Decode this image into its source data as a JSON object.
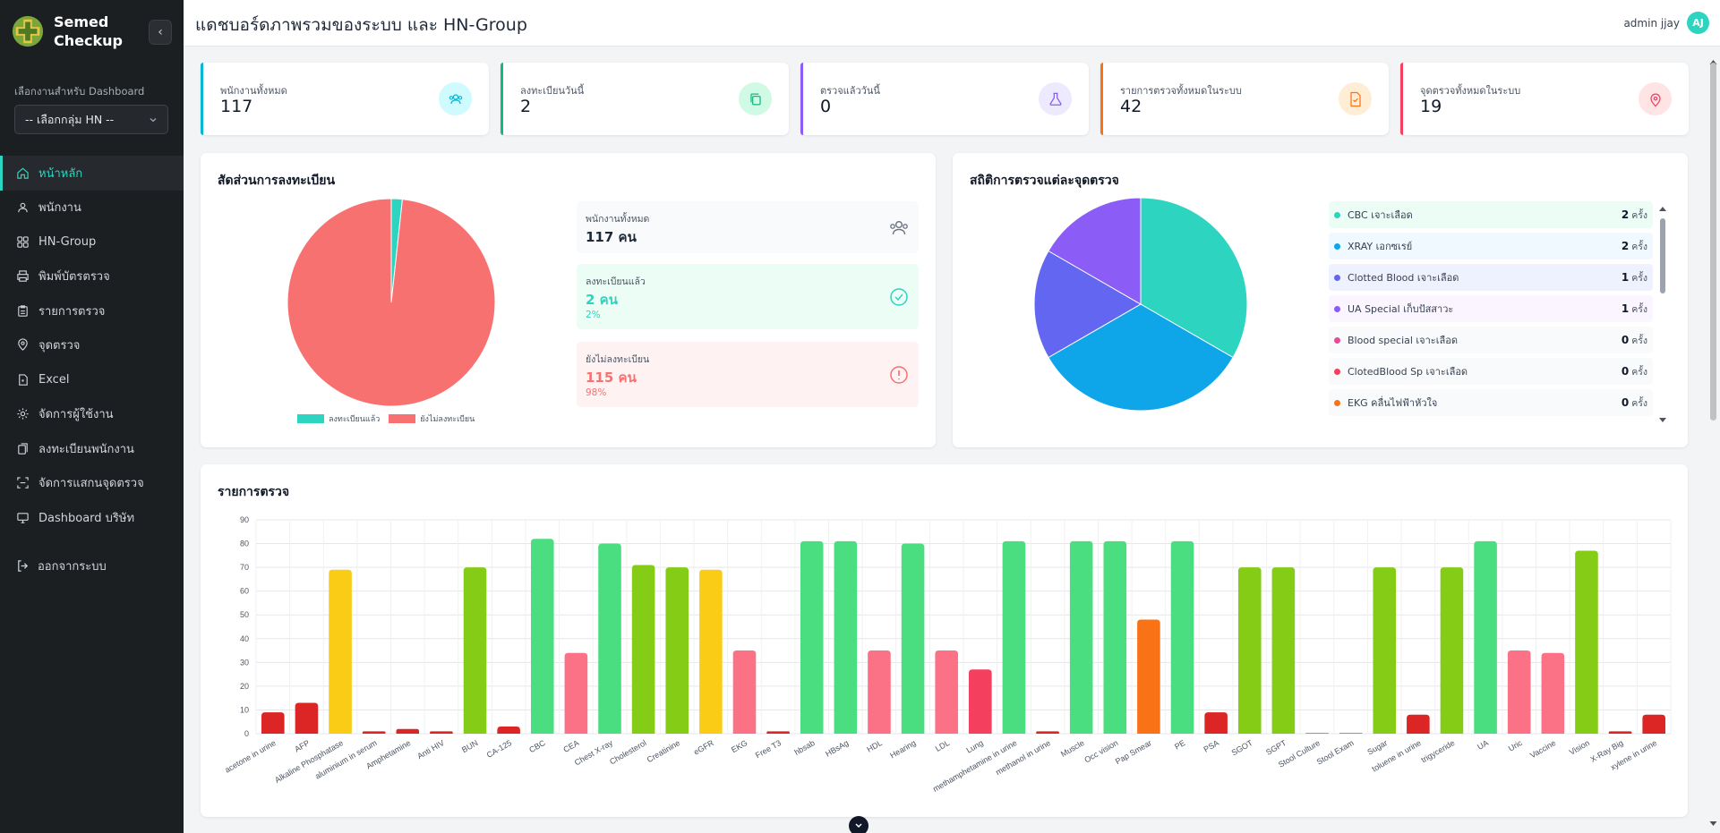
{
  "brand": {
    "line1": "Semed",
    "line2": "Checkup"
  },
  "sidebar": {
    "select_label": "เลือกงานสำหรับ Dashboard",
    "select_value": "-- เลือกกลุ่ม HN --",
    "items": [
      {
        "label": "หน้าหลัก",
        "icon": "home-icon"
      },
      {
        "label": "พนักงาน",
        "icon": "users-icon"
      },
      {
        "label": "HN-Group",
        "icon": "grid-icon"
      },
      {
        "label": "พิมพ์บัตรตรวจ",
        "icon": "printer-icon"
      },
      {
        "label": "รายการตรวจ",
        "icon": "clipboard-icon"
      },
      {
        "label": "จุดตรวจ",
        "icon": "map-pin-icon"
      },
      {
        "label": "Excel",
        "icon": "file-icon"
      },
      {
        "label": "จัดการผู้ใช้งาน",
        "icon": "user-cog-icon"
      },
      {
        "label": "ลงทะเบียนพนักงาน",
        "icon": "register-icon"
      },
      {
        "label": "จัดการแสกนจุดตรวจ",
        "icon": "scan-icon"
      },
      {
        "label": "Dashboard บริษัท",
        "icon": "monitor-icon"
      }
    ],
    "logout": "ออกจากระบบ"
  },
  "header": {
    "title": "แดชบอร์ดภาพรวมของระบบ และ HN-Group",
    "user_name": "admin jjay",
    "user_initials": "AJ"
  },
  "stats": [
    {
      "label": "พนักงานทั้งหมด",
      "value": "117",
      "color": "#06b6d4",
      "bg": "#cffafe",
      "icon": "users-icon"
    },
    {
      "label": "ลงทะเบียนวันนี้",
      "value": "2",
      "color": "#10b981",
      "bg": "#d1fae5",
      "icon": "copy-icon"
    },
    {
      "label": "ตรวจแล้ววันนี้",
      "value": "0",
      "color": "#8b5cf6",
      "bg": "#ede9fe",
      "icon": "flask-icon"
    },
    {
      "label": "รายการตรวจทั้งหมดในระบบ",
      "value": "42",
      "color": "#f97316",
      "bg": "#ffedd5",
      "icon": "file-check-icon"
    },
    {
      "label": "จุดตรวจทั้งหมดในระบบ",
      "value": "19",
      "color": "#f43f5e",
      "bg": "#ffe4e6",
      "icon": "map-pin-icon"
    }
  ],
  "registration": {
    "title": "สัดส่วนการลงทะเบียน",
    "total_label": "พนักงานทั้งหมด",
    "total_value": "117 คน",
    "registered_label": "ลงทะเบียนแล้ว",
    "registered_value": "2 คน",
    "registered_pct": "2%",
    "unregistered_label": "ยังไม่ลงทะเบียน",
    "unregistered_value": "115 คน",
    "unregistered_pct": "98%",
    "legend_registered": "ลงทะเบียนแล้ว",
    "legend_unregistered": "ยังไม่ลงทะเบียน",
    "pie": [
      {
        "value": 2,
        "color": "#2dd4bf"
      },
      {
        "value": 115,
        "color": "#f87171"
      }
    ]
  },
  "station_stats": {
    "title": "สถิติการตรวจแต่ละจุดตรวจ",
    "pie": [
      {
        "value": 2,
        "color": "#2dd4bf"
      },
      {
        "value": 2,
        "color": "#0ea5e9"
      },
      {
        "value": 1,
        "color": "#6366f1"
      },
      {
        "value": 1,
        "color": "#8b5cf6"
      }
    ],
    "items": [
      {
        "name": "CBC เจาะเลือด",
        "count": "2",
        "unit": "ครั้ง",
        "color": "#2dd4bf",
        "bg": "#ecfdf5"
      },
      {
        "name": "XRAY เอกซเรย์",
        "count": "2",
        "unit": "ครั้ง",
        "color": "#0ea5e9",
        "bg": "#f0f9ff"
      },
      {
        "name": "Clotted Blood เจาะเลือด",
        "count": "1",
        "unit": "ครั้ง",
        "color": "#6366f1",
        "bg": "#eef2ff"
      },
      {
        "name": "UA Special เก็บปัสสาวะ",
        "count": "1",
        "unit": "ครั้ง",
        "color": "#8b5cf6",
        "bg": "#faf5ff"
      },
      {
        "name": "Blood special เจาะเลือด",
        "count": "0",
        "unit": "ครั้ง",
        "color": "#ec4899",
        "bg": "#f9fafb"
      },
      {
        "name": "ClotedBlood Sp เจาะเลือด",
        "count": "0",
        "unit": "ครั้ง",
        "color": "#f43f5e",
        "bg": "#f9fafb"
      },
      {
        "name": "EKG คลื่นไฟฟ้าหัวใจ",
        "count": "0",
        "unit": "ครั้ง",
        "color": "#f97316",
        "bg": "#f9fafb"
      }
    ]
  },
  "chart_data": {
    "type": "bar",
    "title": "รายการตรวจ",
    "ylim": [
      0,
      90
    ],
    "yticks": [
      0,
      10,
      20,
      30,
      40,
      50,
      60,
      70,
      80,
      90
    ],
    "categories": [
      "acetone in urine",
      "AFP",
      "Alkaline Phosphatase",
      "aluminium in serum",
      "Amphetamine",
      "Anti HIV",
      "BUN",
      "CA-125",
      "CBC",
      "CEA",
      "Chest X-ray",
      "Cholesterol",
      "Creatinine",
      "eGFR",
      "EKG",
      "Free T3",
      "hbsab",
      "HBsAg",
      "HDL",
      "Hearing",
      "LDL",
      "Lung",
      "methamphetamine in urine",
      "methanol in urine",
      "Muscle",
      "Occ vision",
      "Pap Smear",
      "PE",
      "PSA",
      "SGOT",
      "SGPT",
      "Stool Culture",
      "Stool Exam",
      "Sugar",
      "toluene in urine",
      "trigyceride",
      "UA",
      "Uric",
      "Vaccine",
      "Vision",
      "X-Ray Big",
      "xylene in urine"
    ],
    "values": [
      9,
      13,
      69,
      1,
      2,
      1,
      70,
      3,
      82,
      34,
      80,
      71,
      70,
      69,
      35,
      1,
      81,
      81,
      35,
      80,
      35,
      27,
      81,
      1,
      81,
      81,
      48,
      81,
      9,
      70,
      70,
      0,
      0,
      70,
      8,
      70,
      81,
      35,
      34,
      77,
      1,
      8
    ],
    "colors": [
      "#dc2626",
      "#dc2626",
      "#facc15",
      "#dc2626",
      "#dc2626",
      "#dc2626",
      "#84cc16",
      "#dc2626",
      "#4ade80",
      "#fb7185",
      "#4ade80",
      "#84cc16",
      "#84cc16",
      "#facc15",
      "#fb7185",
      "#dc2626",
      "#4ade80",
      "#4ade80",
      "#fb7185",
      "#4ade80",
      "#fb7185",
      "#f43f5e",
      "#4ade80",
      "#dc2626",
      "#4ade80",
      "#4ade80",
      "#f97316",
      "#4ade80",
      "#dc2626",
      "#84cc16",
      "#84cc16",
      "#dc2626",
      "#dc2626",
      "#84cc16",
      "#dc2626",
      "#84cc16",
      "#4ade80",
      "#fb7185",
      "#fb7185",
      "#84cc16",
      "#dc2626",
      "#dc2626"
    ],
    "grid": true
  }
}
